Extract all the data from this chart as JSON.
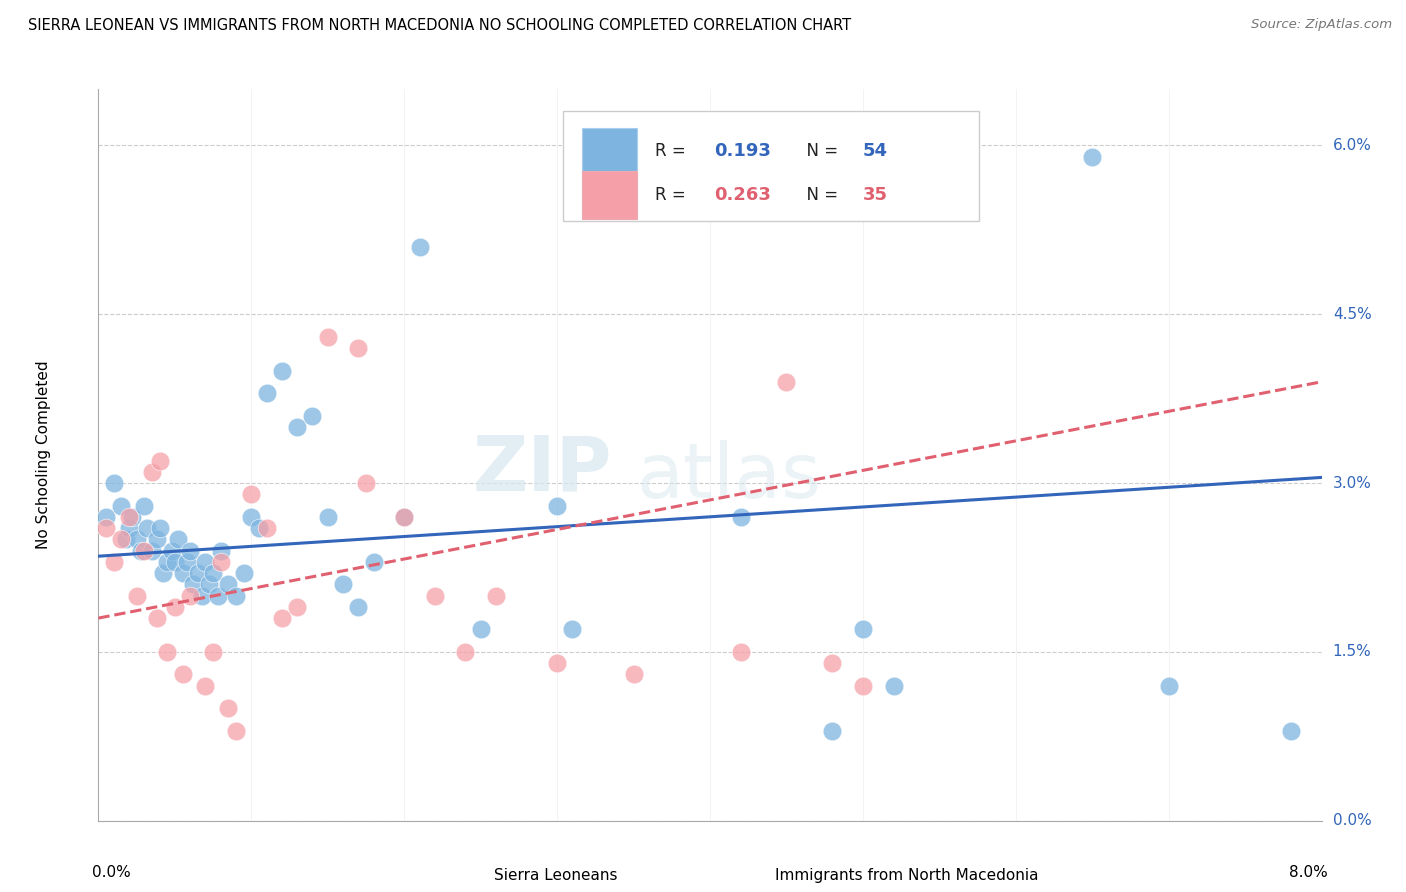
{
  "title": "SIERRA LEONEAN VS IMMIGRANTS FROM NORTH MACEDONIA NO SCHOOLING COMPLETED CORRELATION CHART",
  "source": "Source: ZipAtlas.com",
  "ylabel": "No Schooling Completed",
  "ytick_vals": [
    0.0,
    1.5,
    3.0,
    4.5,
    6.0
  ],
  "xmin": 0.0,
  "xmax": 8.0,
  "ymin": 0.0,
  "ymax": 6.5,
  "legend1_R": "0.193",
  "legend1_N": "54",
  "legend2_R": "0.263",
  "legend2_N": "35",
  "color_blue": "#7EB5E0",
  "color_pink": "#F5A0A8",
  "color_blue_line": "#3366BB",
  "color_pink_line": "#E06070",
  "watermark_zip": "ZIP",
  "watermark_atlas": "atlas",
  "blue_scatter_x": [
    0.05,
    0.1,
    0.15,
    0.18,
    0.2,
    0.22,
    0.25,
    0.28,
    0.3,
    0.32,
    0.35,
    0.38,
    0.4,
    0.42,
    0.45,
    0.48,
    0.5,
    0.52,
    0.55,
    0.58,
    0.6,
    0.62,
    0.65,
    0.68,
    0.7,
    0.72,
    0.75,
    0.78,
    0.8,
    0.85,
    0.9,
    0.95,
    1.0,
    1.05,
    1.1,
    1.2,
    1.3,
    1.4,
    1.5,
    1.6,
    1.7,
    1.8,
    2.0,
    2.1,
    2.5,
    3.0,
    3.1,
    4.2,
    4.8,
    5.0,
    5.2,
    6.5,
    7.0,
    7.8
  ],
  "blue_scatter_y": [
    2.7,
    3.0,
    2.8,
    2.5,
    2.6,
    2.7,
    2.5,
    2.4,
    2.8,
    2.6,
    2.4,
    2.5,
    2.6,
    2.2,
    2.3,
    2.4,
    2.3,
    2.5,
    2.2,
    2.3,
    2.4,
    2.1,
    2.2,
    2.0,
    2.3,
    2.1,
    2.2,
    2.0,
    2.4,
    2.1,
    2.0,
    2.2,
    2.7,
    2.6,
    3.8,
    4.0,
    3.5,
    3.6,
    2.7,
    2.1,
    1.9,
    2.3,
    2.7,
    5.1,
    1.7,
    2.8,
    1.7,
    2.7,
    0.8,
    1.7,
    1.2,
    5.9,
    1.2,
    0.8
  ],
  "pink_scatter_x": [
    0.05,
    0.1,
    0.15,
    0.2,
    0.25,
    0.3,
    0.35,
    0.38,
    0.4,
    0.45,
    0.5,
    0.55,
    0.6,
    0.7,
    0.75,
    0.8,
    0.85,
    0.9,
    1.0,
    1.1,
    1.2,
    1.3,
    1.5,
    1.7,
    1.75,
    2.0,
    2.2,
    2.4,
    2.6,
    3.0,
    3.5,
    4.2,
    4.5,
    4.8,
    5.0
  ],
  "pink_scatter_y": [
    2.6,
    2.3,
    2.5,
    2.7,
    2.0,
    2.4,
    3.1,
    1.8,
    3.2,
    1.5,
    1.9,
    1.3,
    2.0,
    1.2,
    1.5,
    2.3,
    1.0,
    0.8,
    2.9,
    2.6,
    1.8,
    1.9,
    4.3,
    4.2,
    3.0,
    2.7,
    2.0,
    1.5,
    2.0,
    1.4,
    1.3,
    1.5,
    3.9,
    1.4,
    1.2
  ],
  "blue_line_x0": 0.0,
  "blue_line_y0": 2.35,
  "blue_line_x1": 8.0,
  "blue_line_y1": 3.05,
  "pink_line_x0": 0.0,
  "pink_line_y0": 1.8,
  "pink_line_x1": 8.0,
  "pink_line_y1": 3.9
}
